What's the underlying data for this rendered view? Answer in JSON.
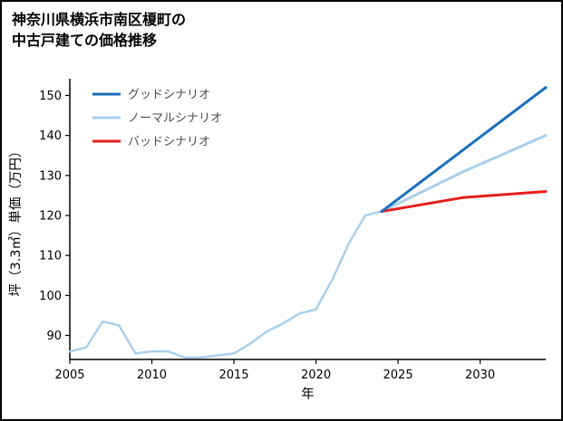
{
  "title": {
    "lines": [
      "神奈川県横浜市南区榎町の",
      "中古戸建ての価格推移"
    ]
  },
  "chart_data": {
    "type": "line",
    "title": "神奈川県横浜市南区榎町の中古戸建ての価格推移",
    "xlabel": "年",
    "ylabel": "坪（3.3㎡）単価（万円）",
    "xlim": [
      2005,
      2034
    ],
    "ylim": [
      84,
      153.5
    ],
    "xticks": [
      2005,
      2010,
      2015,
      2020,
      2025,
      2030
    ],
    "yticks": [
      90,
      100,
      110,
      120,
      130,
      140,
      150
    ],
    "grid": false,
    "legend": {
      "position": "top-left-inside",
      "text_color": "#4d4d4d"
    },
    "axis_color": "#000000",
    "series": [
      {
        "id": "history",
        "name": "",
        "show_in_legend": false,
        "color": "#a9cfed",
        "line_width": 2.5,
        "x": [
          2005,
          2006,
          2007,
          2008,
          2009,
          2010,
          2011,
          2012,
          2013,
          2014,
          2015,
          2016,
          2017,
          2018,
          2019,
          2020,
          2021,
          2022,
          2023,
          2024
        ],
        "y": [
          86,
          87,
          93.5,
          92.5,
          85.5,
          86,
          86,
          84.5,
          84.5,
          85,
          85.5,
          88,
          91,
          93,
          95.5,
          96.5,
          104,
          113,
          120,
          121
        ]
      },
      {
        "id": "good-scenario",
        "name": "グッドシナリオ",
        "show_in_legend": true,
        "color": "#1b6fba",
        "line_width": 3,
        "x": [
          2024,
          2034
        ],
        "y": [
          121,
          152
        ]
      },
      {
        "id": "normal-scenario",
        "name": "ノーマルシナリオ",
        "show_in_legend": true,
        "color": "#a9cfed",
        "line_width": 3,
        "x": [
          2024,
          2029,
          2034
        ],
        "y": [
          121,
          131,
          140
        ]
      },
      {
        "id": "bad-scenario",
        "name": "バッドシナリオ",
        "show_in_legend": true,
        "color": "#e3201b",
        "line_width": 3,
        "x": [
          2024,
          2029,
          2034
        ],
        "y": [
          121,
          124.5,
          126
        ]
      }
    ]
  }
}
